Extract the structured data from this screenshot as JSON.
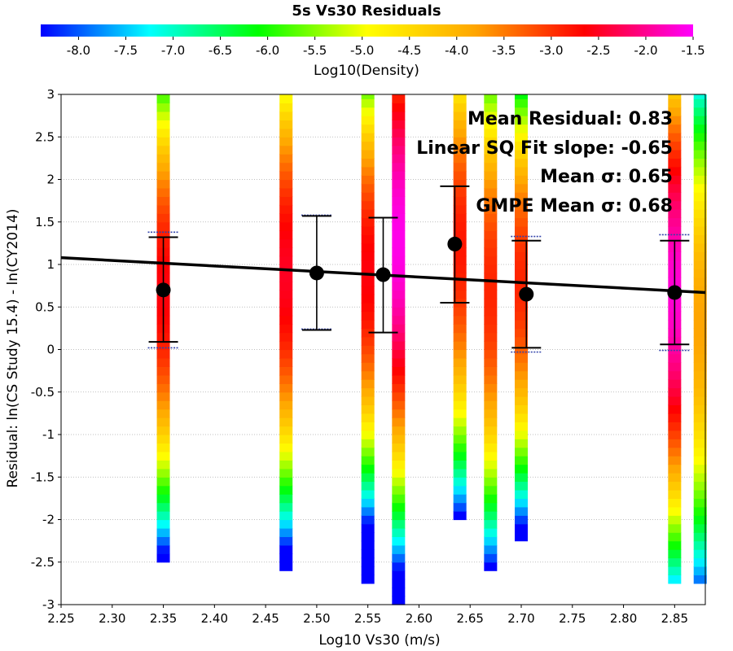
{
  "chart_data": {
    "type": "heatmap",
    "title": "5s Vs30 Residuals",
    "colorbar": {
      "label": "Log10(Density)",
      "range": [
        -8.4,
        -1.5
      ],
      "ticks": [
        -8.0,
        -7.5,
        -7.0,
        -6.5,
        -6.0,
        -5.5,
        -5.0,
        -4.5,
        -4.0,
        -3.5,
        -3.0,
        -2.5,
        -2.0,
        -1.5
      ],
      "tick_labels": [
        "-8.0",
        "-7.5",
        "-7.0",
        "-6.5",
        "-6.0",
        "-5.5",
        "-5.0",
        "-4.5",
        "-4.0",
        "-3.5",
        "-3.0",
        "-2.5",
        "-2.0",
        "-1.5"
      ],
      "colormap": [
        "#0000ff",
        "#00ffff",
        "#00ff00",
        "#ffff00",
        "#ffa500",
        "#ff0000",
        "#ff00ff"
      ]
    },
    "xlabel": "Log10 Vs30 (m/s)",
    "ylabel": "Residual: ln(CS Study 15.4) - ln(CY2014)",
    "xlim": [
      2.25,
      2.88
    ],
    "ylim": [
      -3,
      3
    ],
    "xticks": [
      "2.25",
      "2.30",
      "2.35",
      "2.40",
      "2.45",
      "2.50",
      "2.55",
      "2.60",
      "2.65",
      "2.70",
      "2.75",
      "2.80",
      "2.85"
    ],
    "yticks": [
      "3",
      "2.5",
      "2",
      "1.5",
      "1",
      "0.5",
      "0",
      "-0.5",
      "-1",
      "-1.5",
      "-2",
      "-2.5",
      "-3"
    ],
    "grid": true,
    "density_columns": [
      {
        "x": 2.35,
        "y_range": [
          -2.5,
          3.0
        ],
        "peak_y": 0.7,
        "peak_density": -2.6,
        "spread": 1.2
      },
      {
        "x": 2.47,
        "y_range": [
          -2.6,
          3.0
        ],
        "peak_y": 0.9,
        "peak_density": -2.5,
        "spread": 1.25
      },
      {
        "x": 2.55,
        "y_range": [
          -2.75,
          3.0
        ],
        "peak_y": 0.9,
        "peak_density": -2.6,
        "spread": 1.15
      },
      {
        "x": 2.58,
        "y_range": [
          -3.0,
          3.0
        ],
        "peak_y": 1.3,
        "peak_density": -1.6,
        "spread": 1.4
      },
      {
        "x": 2.64,
        "y_range": [
          -2.0,
          3.0
        ],
        "peak_y": 1.2,
        "peak_density": -2.8,
        "spread": 1.25
      },
      {
        "x": 2.67,
        "y_range": [
          -2.6,
          3.0
        ],
        "peak_y": 0.7,
        "peak_density": -2.9,
        "spread": 1.3
      },
      {
        "x": 2.7,
        "y_range": [
          -2.25,
          3.0
        ],
        "peak_y": 0.8,
        "peak_density": -2.9,
        "spread": 1.15
      },
      {
        "x": 2.85,
        "y_range": [
          -2.75,
          3.0
        ],
        "peak_y": 0.7,
        "peak_density": -1.7,
        "spread": 1.35
      },
      {
        "x": 2.875,
        "y_range": [
          -2.75,
          3.0
        ],
        "peak_y": 0.3,
        "peak_density": -3.8,
        "spread": 1.4
      }
    ],
    "bin_means": [
      {
        "x": 2.35,
        "mean": 0.7,
        "err_low": 0.09,
        "err_high": 1.32,
        "gmpe_low": 0.02,
        "gmpe_high": 1.38
      },
      {
        "x": 2.5,
        "mean": 0.9,
        "err_low": 0.23,
        "err_high": 1.57,
        "gmpe_low": 0.24,
        "gmpe_high": 1.58
      },
      {
        "x": 2.565,
        "mean": 0.88,
        "err_low": 0.2,
        "err_high": 1.55,
        "gmpe_low": null,
        "gmpe_high": null
      },
      {
        "x": 2.635,
        "mean": 1.24,
        "err_low": 0.55,
        "err_high": 1.92,
        "gmpe_low": null,
        "gmpe_high": null
      },
      {
        "x": 2.705,
        "mean": 0.65,
        "err_low": 0.02,
        "err_high": 1.28,
        "gmpe_low": -0.03,
        "gmpe_high": 1.33
      },
      {
        "x": 2.85,
        "mean": 0.67,
        "err_low": 0.06,
        "err_high": 1.28,
        "gmpe_low": -0.01,
        "gmpe_high": 1.35
      }
    ],
    "fit_line": {
      "x": [
        2.25,
        2.88
      ],
      "y": [
        1.08,
        0.67
      ]
    },
    "annotations": [
      "Mean Residual: 0.83",
      "Linear SQ Fit slope: -0.65",
      "Mean σ: 0.65",
      "GMPE Mean σ: 0.68"
    ]
  }
}
